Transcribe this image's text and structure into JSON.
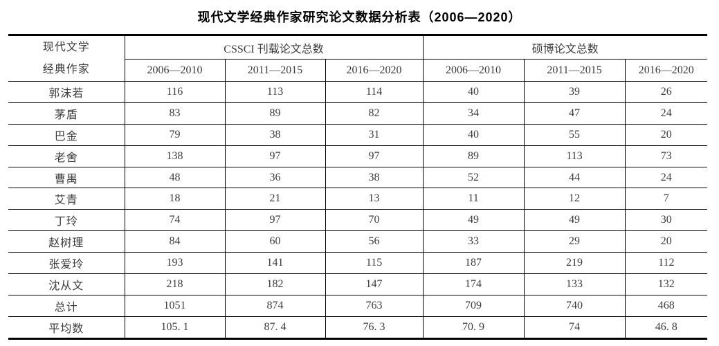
{
  "title": "现代文学经典作家研究论文数据分析表（2006—2020）",
  "table": {
    "corner_header": {
      "line1": "现代文学",
      "line2": "经典作家"
    },
    "group_headers": [
      {
        "label": "CSSCI 刊载论文总数"
      },
      {
        "label": "硕博论文总数"
      }
    ],
    "period_headers": [
      "2006—2010",
      "2011—2015",
      "2016—2020",
      "2006—2010",
      "2011—2015",
      "2016—2020"
    ],
    "rows": [
      {
        "label": "郭沫若",
        "values": [
          "116",
          "113",
          "114",
          "40",
          "39",
          "26"
        ]
      },
      {
        "label": "茅盾",
        "values": [
          "83",
          "89",
          "82",
          "34",
          "47",
          "24"
        ]
      },
      {
        "label": "巴金",
        "values": [
          "79",
          "38",
          "31",
          "40",
          "55",
          "20"
        ]
      },
      {
        "label": "老舍",
        "values": [
          "138",
          "97",
          "97",
          "89",
          "113",
          "73"
        ]
      },
      {
        "label": "曹禺",
        "values": [
          "48",
          "36",
          "38",
          "52",
          "44",
          "24"
        ]
      },
      {
        "label": "艾青",
        "values": [
          "18",
          "21",
          "13",
          "11",
          "12",
          "7"
        ]
      },
      {
        "label": "丁玲",
        "values": [
          "74",
          "97",
          "70",
          "49",
          "49",
          "30"
        ]
      },
      {
        "label": "赵树理",
        "values": [
          "84",
          "60",
          "56",
          "33",
          "29",
          "20"
        ]
      },
      {
        "label": "张爱玲",
        "values": [
          "193",
          "141",
          "115",
          "187",
          "219",
          "112"
        ]
      },
      {
        "label": "沈从文",
        "values": [
          "218",
          "182",
          "147",
          "174",
          "133",
          "132"
        ]
      },
      {
        "label": "总计",
        "values": [
          "1051",
          "874",
          "763",
          "709",
          "740",
          "468"
        ]
      },
      {
        "label": "平均数",
        "values": [
          "105. 1",
          "87. 4",
          "76. 3",
          "70. 9",
          "74",
          "46. 8"
        ]
      }
    ]
  },
  "chart_data": {
    "type": "table",
    "title": "现代文学经典作家研究论文数据分析表（2006—2020）",
    "row_header": "现代文学经典作家",
    "column_groups": [
      {
        "label": "CSSCI 刊载论文总数",
        "columns": [
          "2006—2010",
          "2011—2015",
          "2016—2020"
        ]
      },
      {
        "label": "硕博论文总数",
        "columns": [
          "2006—2010",
          "2011—2015",
          "2016—2020"
        ]
      }
    ],
    "rows": [
      {
        "writer": "郭沫若",
        "cssci": [
          116,
          113,
          114
        ],
        "theses": [
          40,
          39,
          26
        ]
      },
      {
        "writer": "茅盾",
        "cssci": [
          83,
          89,
          82
        ],
        "theses": [
          34,
          47,
          24
        ]
      },
      {
        "writer": "巴金",
        "cssci": [
          79,
          38,
          31
        ],
        "theses": [
          40,
          55,
          20
        ]
      },
      {
        "writer": "老舍",
        "cssci": [
          138,
          97,
          97
        ],
        "theses": [
          89,
          113,
          73
        ]
      },
      {
        "writer": "曹禺",
        "cssci": [
          48,
          36,
          38
        ],
        "theses": [
          52,
          44,
          24
        ]
      },
      {
        "writer": "艾青",
        "cssci": [
          18,
          21,
          13
        ],
        "theses": [
          11,
          12,
          7
        ]
      },
      {
        "writer": "丁玲",
        "cssci": [
          74,
          97,
          70
        ],
        "theses": [
          49,
          49,
          30
        ]
      },
      {
        "writer": "赵树理",
        "cssci": [
          84,
          60,
          56
        ],
        "theses": [
          33,
          29,
          20
        ]
      },
      {
        "writer": "张爱玲",
        "cssci": [
          193,
          141,
          115
        ],
        "theses": [
          187,
          219,
          112
        ]
      },
      {
        "writer": "沈从文",
        "cssci": [
          218,
          182,
          147
        ],
        "theses": [
          174,
          133,
          132
        ]
      },
      {
        "writer": "总计",
        "cssci": [
          1051,
          874,
          763
        ],
        "theses": [
          709,
          740,
          468
        ]
      },
      {
        "writer": "平均数",
        "cssci": [
          105.1,
          87.4,
          76.3
        ],
        "theses": [
          70.9,
          74,
          46.8
        ]
      }
    ]
  },
  "colors": {
    "border": "#000000",
    "cell_text": "#3c3c3c",
    "title_text": "#000000",
    "background": "#ffffff"
  }
}
